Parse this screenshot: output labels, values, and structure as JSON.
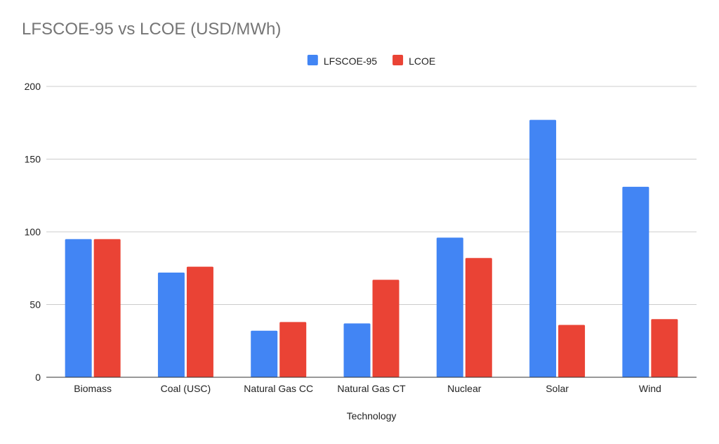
{
  "chart_data": {
    "type": "bar",
    "title": "LFSCOE-95 vs LCOE (USD/MWh)",
    "xlabel": "Technology",
    "ylabel": "",
    "ylim": [
      0,
      200
    ],
    "yticks": [
      0,
      50,
      100,
      150,
      200
    ],
    "grid": true,
    "legend": "top-center",
    "categories": [
      "Biomass",
      "Coal (USC)",
      "Natural Gas CC",
      "Natural Gas CT",
      "Nuclear",
      "Solar",
      "Wind"
    ],
    "series": [
      {
        "name": "LFSCOE-95",
        "color": "#4285f4",
        "values": [
          95,
          72,
          32,
          37,
          96,
          177,
          131
        ]
      },
      {
        "name": "LCOE",
        "color": "#ea4335",
        "values": [
          95,
          76,
          38,
          67,
          82,
          36,
          40
        ]
      }
    ]
  }
}
